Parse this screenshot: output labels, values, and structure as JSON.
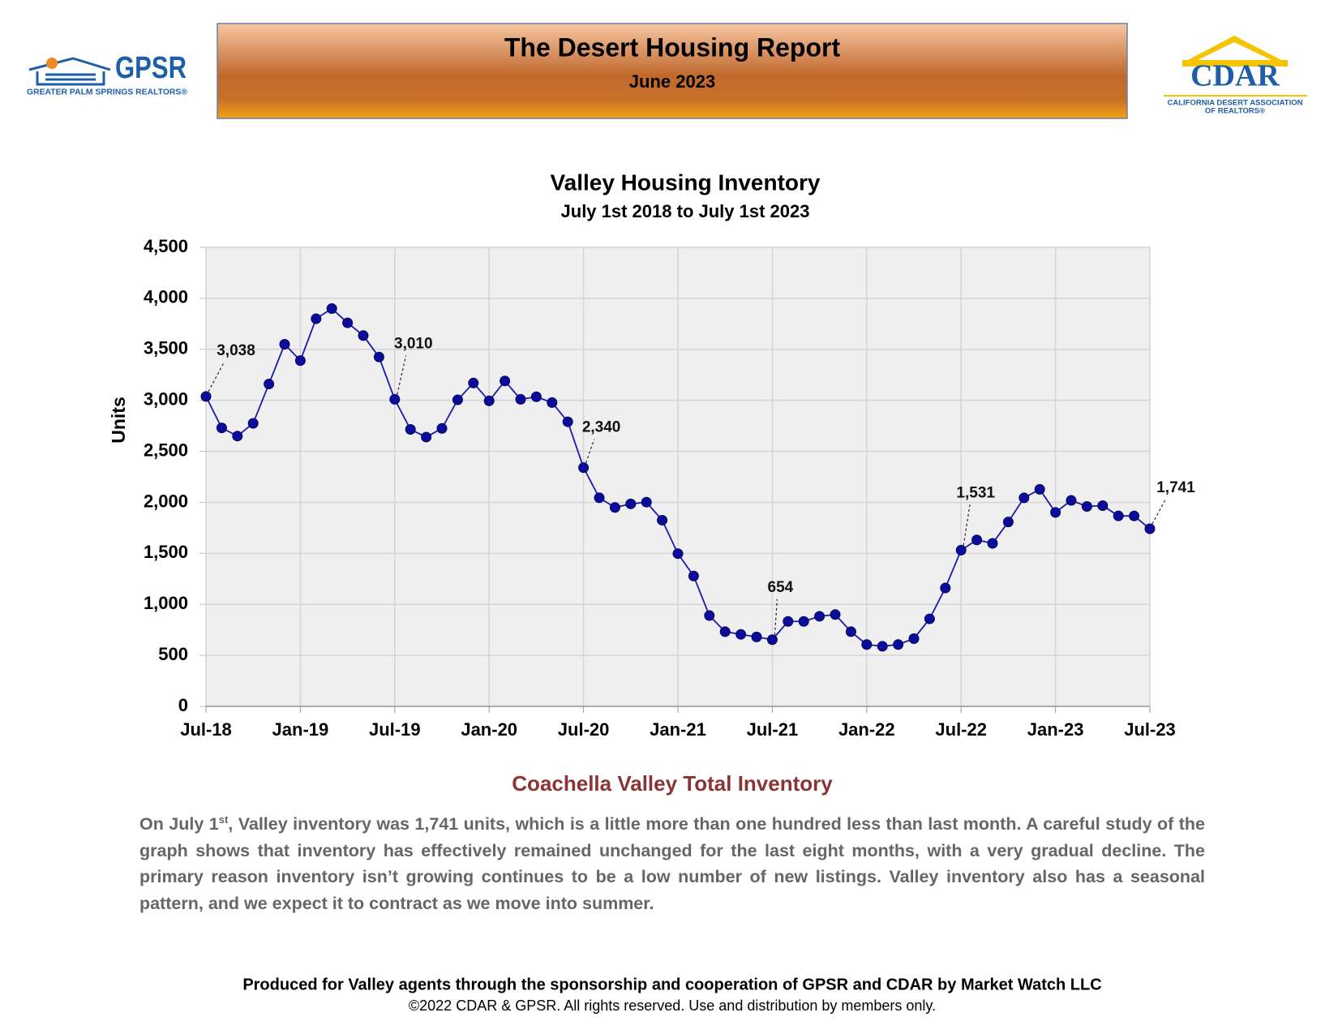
{
  "header": {
    "title": "The Desert Housing Report",
    "subtitle": "June 2023"
  },
  "logos": {
    "gpsr": {
      "name": "GPSR",
      "tagline": "GREATER PALM SPRINGS REALTORS®"
    },
    "cdar": {
      "name": "CDAR",
      "tagline1": "CALIFORNIA DESERT ASSOCIATION",
      "tagline2": "OF REALTORS®"
    }
  },
  "chart_data": {
    "type": "line",
    "title": "Valley Housing Inventory",
    "subtitle": "July 1st 2018 to July 1st 2023",
    "y_label": "Units",
    "categories": [
      "Jul-18",
      null,
      null,
      null,
      null,
      null,
      "Jan-19",
      null,
      null,
      null,
      null,
      null,
      "Jul-19",
      null,
      null,
      null,
      null,
      null,
      "Jan-20",
      null,
      null,
      null,
      null,
      null,
      "Jul-20",
      null,
      null,
      null,
      null,
      null,
      "Jan-21",
      null,
      null,
      null,
      null,
      null,
      "Jul-21",
      null,
      null,
      null,
      null,
      null,
      "Jan-22",
      null,
      null,
      null,
      null,
      null,
      "Jul-22",
      null,
      null,
      null,
      null,
      null,
      "Jan-23",
      null,
      null,
      null,
      null,
      null,
      "Jul-23"
    ],
    "values": [
      3038,
      2730,
      2650,
      2775,
      3160,
      3550,
      3390,
      3800,
      3900,
      3760,
      3635,
      3425,
      3010,
      2715,
      2640,
      2725,
      3005,
      3170,
      2995,
      3190,
      3010,
      3035,
      2978,
      2790,
      2340,
      2045,
      1950,
      1985,
      2002,
      1825,
      1497,
      1278,
      890,
      732,
      706,
      681,
      654,
      833,
      833,
      883,
      900,
      732,
      606,
      589,
      606,
      664,
      858,
      1161,
      1531,
      1632,
      1598,
      1808,
      2044,
      2128,
      1901,
      2019,
      1960,
      1968,
      1867,
      1867,
      1741
    ],
    "value_labels": [
      "3,038",
      null,
      null,
      null,
      null,
      null,
      null,
      null,
      null,
      null,
      null,
      null,
      "3,010",
      null,
      null,
      null,
      null,
      null,
      null,
      null,
      null,
      null,
      null,
      null,
      "2,340",
      null,
      null,
      null,
      null,
      null,
      null,
      null,
      null,
      null,
      null,
      null,
      "654",
      null,
      null,
      null,
      null,
      null,
      null,
      null,
      null,
      null,
      null,
      null,
      "1,531",
      null,
      null,
      null,
      null,
      null,
      null,
      null,
      null,
      null,
      null,
      null,
      "1,741"
    ],
    "color": "#1a1aa8",
    "marker_color": "#0c0c9a",
    "ylim": [
      0,
      4500
    ],
    "yticks": [
      0,
      500,
      {
        "value": 1000,
        "label": "1,000"
      },
      {
        "value": 1500,
        "label": "1,500"
      },
      {
        "value": 2000,
        "label": "2,000"
      },
      {
        "value": 2500,
        "label": "2,500"
      },
      {
        "value": 3000,
        "label": "3,000"
      },
      {
        "value": 3500,
        "label": "3,500"
      },
      {
        "value": 4000,
        "label": "4,000"
      },
      {
        "value": 4500,
        "label": "4,500"
      }
    ],
    "grid": true
  },
  "caption": {
    "heading": "Coachella Valley Total Inventory",
    "body": {
      "before": "On July 1",
      "sup": "st",
      "after": ", Valley inventory was 1,741 units, which is a little more than one hundred less than last month. A careful study of the graph shows that inventory has effectively remained unchanged for the last eight months, with a very gradual decline. The primary reason inventory isn’t growing continues to be a low number of new listings. Valley inventory also has a seasonal pattern, and we expect it to contract as we move into summer."
    }
  },
  "footer": {
    "line1": "Produced for Valley agents through the sponsorship and cooperation of GPSR and CDAR by Market Watch LLC",
    "line2": "©2022 CDAR & GPSR.  All rights reserved.  Use and distribution by members only."
  }
}
